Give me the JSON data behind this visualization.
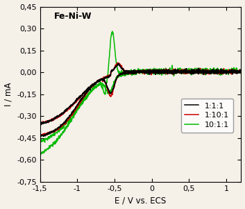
{
  "title": "Fe-Ni-W",
  "xlabel": "E / V vs. ECS",
  "ylabel": "I / mA",
  "xlim": [
    -1.5,
    1.2
  ],
  "ylim": [
    -0.75,
    0.45
  ],
  "yticks": [
    -0.75,
    -0.6,
    -0.45,
    -0.3,
    -0.15,
    0.0,
    0.15,
    0.3,
    0.45
  ],
  "xticks": [
    -1.5,
    -1.0,
    -0.5,
    0.0,
    0.5,
    1.0
  ],
  "legend_labels": [
    "1:1:1",
    "1:10:1",
    "10:1:1"
  ],
  "colors": [
    "#000000",
    "#cc0000",
    "#00bb00"
  ],
  "background_color": "#f5f0e8",
  "figsize": [
    3.53,
    3.01
  ],
  "dpi": 100
}
